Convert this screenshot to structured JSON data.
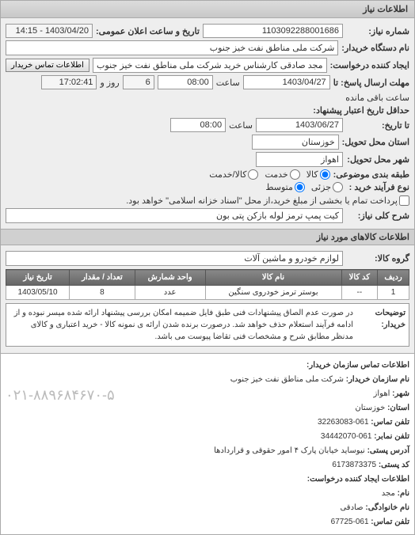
{
  "panel": {
    "title": "اطلاعات نیاز"
  },
  "header": {
    "req_no_label": "شماره نیاز:",
    "req_no": "1103092288001686",
    "pub_date_label": "تاریخ و ساعت اعلان عمومی:",
    "pub_date": "1403/04/20 - 14:15",
    "buyer_label": "نام دستگاه خریدار:",
    "buyer": "شرکت ملی مناطق نفت خیز جنوب",
    "creator_label": "ایجاد کننده درخواست:",
    "creator": "مجد صادقی کارشناس خرید شرکت ملی مناطق نفت خیز جنوب",
    "contact_btn": "اطلاعات تماس خریدار"
  },
  "deadlines": {
    "reply_until_label": "مهلت ارسال پاسخ: تا",
    "reply_date": "1403/04/27",
    "reply_time_label": "ساعت",
    "reply_time": "08:00",
    "remain_day": "6",
    "remain_day_label": "روز و",
    "remain_time": "17:02:41",
    "remain_label": "ساعت باقی مانده",
    "valid_until_label": "حداقل تاریخ اعتبار پیشنهاد:",
    "valid_label2": "تا تاریخ:",
    "valid_date": "1403/06/27",
    "valid_time_label": "ساعت",
    "valid_time": "08:00"
  },
  "location": {
    "province_label": "استان محل تحویل:",
    "province": "خوزستان",
    "city_label": "شهر محل تحویل:",
    "city": "اهواز"
  },
  "category": {
    "label": "طبقه بندی موضوعی:",
    "opt1": "کالا",
    "opt2": "خدمت",
    "opt3": "کالا/خدمت"
  },
  "amount": {
    "label": "نوع فرآیند خرید :",
    "opt1": "جزئی",
    "opt2": "متوسط",
    "note": "پرداخت تمام یا بخشی از مبلغ خرید،از محل \"اسناد خزانه اسلامی\" خواهد بود."
  },
  "need": {
    "label": "شرح کلی نیاز:",
    "text": "کیت پمپ ترمز لوله بازکن پتی بون"
  },
  "goods_header": "اطلاعات کالاهای مورد نیاز",
  "group": {
    "label": "گروه کالا:",
    "text": "لوازم خودرو و ماشین آلات"
  },
  "table": {
    "cols": [
      "ردیف",
      "کد کالا",
      "نام کالا",
      "واحد شمارش",
      "تعداد / مقدار",
      "تاریخ نیاز"
    ],
    "row": [
      "1",
      "--",
      "بوستر ترمز خودروی سنگین",
      "عدد",
      "8",
      "1403/05/10"
    ]
  },
  "buyer_note": {
    "label": "توضیحات خریدار:",
    "text": "در صورت عدم الصاق پیشنهادات فنی طبق فایل ضمیمه امکان بررسی پیشنهاد ارائه شده میسر نبوده و از ادامه فرآیند استعلام حذف خواهد شد. درصورت برنده شدن ارائه ی نمونه کالا - خرید اعتباری و کالای مدنظر مطابق شرح و مشخصات فنی تقاضا پیوست می باشد."
  },
  "watermark": "۰۲۱-۸۸۹۶۸۴۶۷۰-۵",
  "contact": {
    "header": "اطلاعات تماس سازمان خریدار:",
    "org_label": "نام سازمان خریدار:",
    "org": "شرکت ملی مناطق نفت خیز جنوب",
    "city_label": "شهر:",
    "city": "اهواز",
    "province_label": "استان:",
    "province": "خوزستان",
    "tel_label": "تلفن تماس:",
    "tel": "061-32263083",
    "fax_label": "تلفن نمابر:",
    "fax": "061-34442070",
    "addr_label": "آدرس پستی:",
    "addr": "نیوساید خیابان پارک ۴ امور حقوقی و قراردادها",
    "postal_label": "کد پستی:",
    "postal": "6173873375",
    "creator_header": "اطلاعات ایجاد کننده درخواست:",
    "name_label": "نام:",
    "name": "مجد",
    "family_label": "نام خانوادگی:",
    "family": "صادقی",
    "phone_label": "تلفن تماس:",
    "phone": "061-67725"
  }
}
